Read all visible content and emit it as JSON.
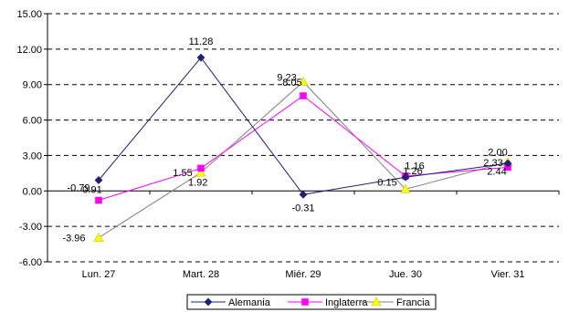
{
  "chart_data": {
    "type": "line",
    "categories": [
      "Lun. 27",
      "Mart. 28",
      "Miér. 29",
      "Jue. 30",
      "Vier. 31"
    ],
    "ylim": [
      -6,
      15
    ],
    "yticks": [
      -6,
      -3,
      0,
      3,
      6,
      9,
      12,
      15
    ],
    "ytick_labels": [
      "-6.00",
      "-3.00",
      "0.00",
      "3.00",
      "6.00",
      "9.00",
      "12.00",
      "15.00"
    ],
    "grid": "horizontal dashed",
    "legend_position": "bottom",
    "series": [
      {
        "name": "Alemania",
        "color": "#1f1f7a",
        "marker": "diamond",
        "values": [
          0.91,
          11.28,
          -0.31,
          1.16,
          2.33
        ],
        "labels": [
          "0.91",
          "11.28",
          "-0.31",
          "1.16",
          "2.33"
        ]
      },
      {
        "name": "Inglaterra",
        "color": "#ff00ff",
        "marker": "square",
        "values": [
          -0.79,
          1.92,
          8.05,
          1.26,
          2.0
        ],
        "labels": [
          "-0.79",
          "1.92",
          "8.05",
          "1.26",
          "2.00"
        ]
      },
      {
        "name": "Francia",
        "color": "#ffff00",
        "line_color": "#808080",
        "marker": "triangle",
        "values": [
          -3.96,
          1.55,
          9.23,
          0.15,
          2.44
        ],
        "labels": [
          "-3.96",
          "1.55",
          "9.23",
          "0.15",
          "2.44"
        ]
      }
    ]
  }
}
